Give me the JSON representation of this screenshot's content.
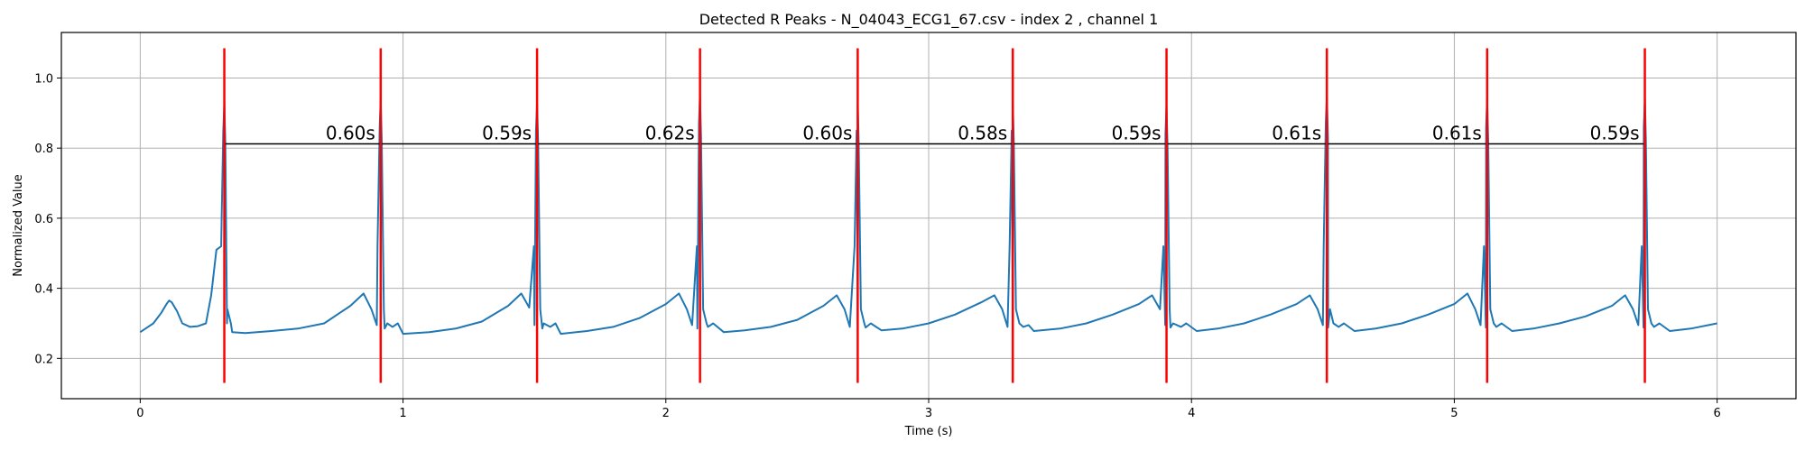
{
  "chart_data": {
    "type": "line",
    "title": "Detected R Peaks - N_04043_ECG1_67.csv - index 2 , channel 1",
    "xlabel": "Time (s)",
    "ylabel": "Normalized Value",
    "xlim": [
      -0.3,
      6.3
    ],
    "ylim": [
      0.085,
      1.13
    ],
    "xticks": [
      0,
      1,
      2,
      3,
      4,
      5,
      6
    ],
    "yticks": [
      0.2,
      0.4,
      0.6,
      0.8,
      1.0
    ],
    "grid": true,
    "colors": {
      "signal": "#1f77b4",
      "peaks": "#ff0000",
      "interval_line": "#000000"
    },
    "series": [
      {
        "type": "line",
        "baseline": [
          [
            0.0,
            0.275
          ],
          [
            0.02,
            0.285
          ],
          [
            0.05,
            0.3
          ],
          [
            0.08,
            0.33
          ],
          [
            0.1,
            0.355
          ],
          [
            0.11,
            0.365
          ],
          [
            0.12,
            0.36
          ],
          [
            0.14,
            0.335
          ],
          [
            0.16,
            0.3
          ],
          [
            0.19,
            0.29
          ],
          [
            0.22,
            0.292
          ],
          [
            0.25,
            0.3
          ],
          [
            0.27,
            0.38
          ],
          [
            0.29,
            0.51
          ],
          [
            0.31,
            0.6
          ],
          [
            0.33,
            0.3
          ],
          [
            0.35,
            0.275
          ],
          [
            0.4,
            0.272
          ],
          [
            0.5,
            0.278
          ],
          [
            0.6,
            0.285
          ],
          [
            0.7,
            0.3
          ],
          [
            0.8,
            0.35
          ],
          [
            0.85,
            0.385
          ],
          [
            0.88,
            0.34
          ],
          [
            0.9,
            0.295
          ],
          [
            0.93,
            0.285
          ],
          [
            0.96,
            0.29
          ],
          [
            0.98,
            0.3
          ],
          [
            1.0,
            0.27
          ],
          [
            1.0,
            0.27
          ],
          [
            1.1,
            0.275
          ],
          [
            1.2,
            0.285
          ],
          [
            1.3,
            0.305
          ],
          [
            1.4,
            0.35
          ],
          [
            1.45,
            0.385
          ],
          [
            1.48,
            0.345
          ],
          [
            1.5,
            0.295
          ],
          [
            1.53,
            0.285
          ],
          [
            1.56,
            0.29
          ],
          [
            1.58,
            0.3
          ],
          [
            1.6,
            0.27
          ],
          [
            1.6,
            0.27
          ],
          [
            1.7,
            0.278
          ],
          [
            1.8,
            0.29
          ],
          [
            1.9,
            0.315
          ],
          [
            2.0,
            0.355
          ],
          [
            2.05,
            0.385
          ],
          [
            2.08,
            0.34
          ],
          [
            2.1,
            0.295
          ],
          [
            2.12,
            0.285
          ],
          [
            2.16,
            0.29
          ],
          [
            2.18,
            0.3
          ],
          [
            2.22,
            0.275
          ],
          [
            2.22,
            0.275
          ],
          [
            2.3,
            0.28
          ],
          [
            2.4,
            0.29
          ],
          [
            2.5,
            0.31
          ],
          [
            2.6,
            0.35
          ],
          [
            2.65,
            0.38
          ],
          [
            2.68,
            0.34
          ],
          [
            2.7,
            0.29
          ],
          [
            2.73,
            0.282
          ],
          [
            2.76,
            0.288
          ],
          [
            2.78,
            0.3
          ],
          [
            2.82,
            0.28
          ],
          [
            2.82,
            0.28
          ],
          [
            2.9,
            0.285
          ],
          [
            3.0,
            0.3
          ],
          [
            3.1,
            0.325
          ],
          [
            3.2,
            0.36
          ],
          [
            3.25,
            0.38
          ],
          [
            3.28,
            0.34
          ],
          [
            3.3,
            0.29
          ],
          [
            3.32,
            0.285
          ],
          [
            3.36,
            0.29
          ],
          [
            3.38,
            0.295
          ],
          [
            3.4,
            0.278
          ],
          [
            3.4,
            0.278
          ],
          [
            3.5,
            0.285
          ],
          [
            3.6,
            0.3
          ],
          [
            3.7,
            0.325
          ],
          [
            3.8,
            0.355
          ],
          [
            3.85,
            0.38
          ],
          [
            3.88,
            0.34
          ],
          [
            3.9,
            0.295
          ],
          [
            3.92,
            0.288
          ],
          [
            3.96,
            0.29
          ],
          [
            3.98,
            0.3
          ],
          [
            4.02,
            0.278
          ],
          [
            4.02,
            0.278
          ],
          [
            4.1,
            0.285
          ],
          [
            4.2,
            0.3
          ],
          [
            4.3,
            0.325
          ],
          [
            4.4,
            0.355
          ],
          [
            4.45,
            0.38
          ],
          [
            4.48,
            0.34
          ],
          [
            4.5,
            0.295
          ],
          [
            4.52,
            0.288
          ],
          [
            4.56,
            0.29
          ],
          [
            4.58,
            0.3
          ],
          [
            4.62,
            0.278
          ],
          [
            4.62,
            0.278
          ],
          [
            4.7,
            0.285
          ],
          [
            4.8,
            0.3
          ],
          [
            4.9,
            0.325
          ],
          [
            5.0,
            0.355
          ],
          [
            5.05,
            0.385
          ],
          [
            5.08,
            0.34
          ],
          [
            5.1,
            0.295
          ],
          [
            5.12,
            0.288
          ],
          [
            5.16,
            0.29
          ],
          [
            5.18,
            0.3
          ],
          [
            5.22,
            0.278
          ],
          [
            5.22,
            0.278
          ],
          [
            5.3,
            0.285
          ],
          [
            5.4,
            0.3
          ],
          [
            5.5,
            0.32
          ],
          [
            5.6,
            0.35
          ],
          [
            5.65,
            0.38
          ],
          [
            5.68,
            0.34
          ],
          [
            5.7,
            0.295
          ],
          [
            5.72,
            0.288
          ],
          [
            5.76,
            0.29
          ],
          [
            5.78,
            0.3
          ],
          [
            5.82,
            0.278
          ],
          [
            5.82,
            0.278
          ],
          [
            5.9,
            0.285
          ],
          [
            6.0,
            0.3
          ]
        ]
      }
    ],
    "r_peaks": [
      0.32,
      0.915,
      1.51,
      2.13,
      2.73,
      3.32,
      3.905,
      4.515,
      5.125,
      5.725
    ],
    "peak_heights": [
      0.93,
      0.94,
      0.93,
      0.95,
      0.93,
      0.93,
      0.92,
      0.95,
      0.94,
      0.94
    ],
    "peak_lines": {
      "ymin": 0.13,
      "ymax": 1.085
    },
    "interval_line_y": 0.812,
    "intervals": [
      "0.60s",
      "0.59s",
      "0.62s",
      "0.60s",
      "0.58s",
      "0.59s",
      "0.61s",
      "0.61s",
      "0.59s"
    ]
  }
}
